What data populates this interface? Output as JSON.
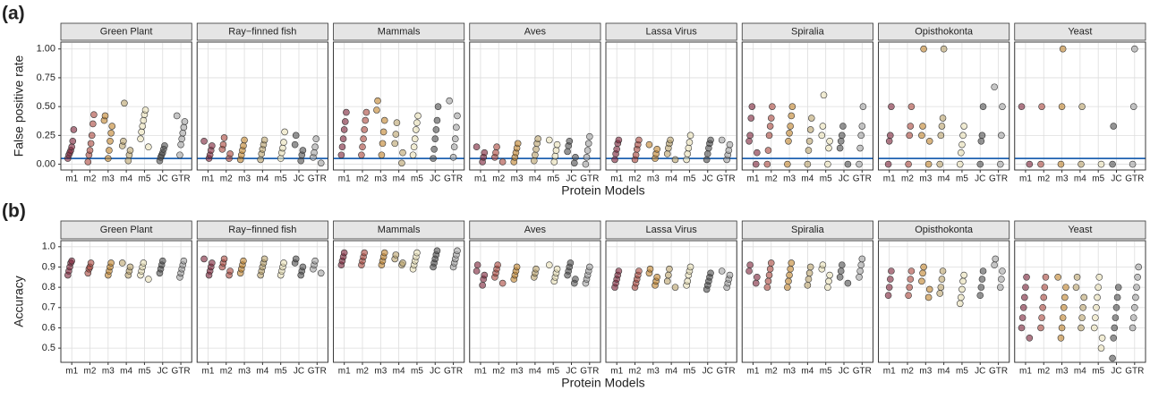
{
  "chart_data": [
    {
      "type": "strip",
      "label": "(a)",
      "y_label": "False positive rate",
      "x_label": "Protein Models",
      "categories": [
        "m1",
        "m2",
        "m3",
        "m4",
        "m5",
        "JC",
        "GTR"
      ],
      "colors": [
        "#7a2035",
        "#a8453a",
        "#c0822a",
        "#b9a26a",
        "#e8dfb5",
        "#4d4d4d",
        "#a0a0a0"
      ],
      "ylim": [
        -0.05,
        1.06
      ],
      "yticks": [
        {
          "value": 0,
          "label": "0.00"
        },
        0.25,
        {
          "value": 0.5,
          "label": "0.50"
        },
        0.75,
        {
          "value": 1,
          "label": "1.00"
        }
      ],
      "hline": 0.05,
      "hline_color": "#1f62b0",
      "grid": true,
      "facets": [
        {
          "name": "Green Plant",
          "values": [
            [
              0.05,
              0.08,
              0.1,
              0.12,
              0.15,
              0.2,
              0.3
            ],
            [
              0.02,
              0.08,
              0.12,
              0.18,
              0.25,
              0.35,
              0.43
            ],
            [
              0.05,
              0.12,
              0.2,
              0.27,
              0.33,
              0.38,
              0.42
            ],
            [
              0.03,
              0.08,
              0.12,
              0.16,
              0.2,
              0.53
            ],
            [
              0.15,
              0.22,
              0.28,
              0.33,
              0.38,
              0.43,
              0.47
            ],
            [
              0.03,
              0.06,
              0.08,
              0.1,
              0.13,
              0.16
            ],
            [
              0.08,
              0.17,
              0.22,
              0.27,
              0.32,
              0.37,
              0.42
            ]
          ]
        },
        {
          "name": "Ray−finned fish",
          "values": [
            [
              0.05,
              0.08,
              0.12,
              0.16,
              0.2
            ],
            [
              0.05,
              0.09,
              0.13,
              0.17,
              0.23
            ],
            [
              0.04,
              0.08,
              0.12,
              0.16,
              0.21
            ],
            [
              0.04,
              0.09,
              0.13,
              0.17,
              0.21
            ],
            [
              0.05,
              0.1,
              0.14,
              0.19,
              0.28
            ],
            [
              0.03,
              0.08,
              0.12,
              0.17,
              0.25
            ],
            [
              0.01,
              0.06,
              0.1,
              0.15,
              0.22
            ]
          ]
        },
        {
          "name": "Mammals",
          "values": [
            [
              0.08,
              0.15,
              0.22,
              0.3,
              0.37,
              0.45
            ],
            [
              0.08,
              0.15,
              0.22,
              0.3,
              0.38,
              0.45
            ],
            [
              0.08,
              0.18,
              0.28,
              0.38,
              0.47,
              0.55
            ],
            [
              0.01,
              0.1,
              0.18,
              0.26,
              0.36
            ],
            [
              0.08,
              0.15,
              0.22,
              0.3,
              0.36,
              0.42
            ],
            [
              0.05,
              0.13,
              0.22,
              0.3,
              0.38,
              0.5
            ],
            [
              0.06,
              0.15,
              0.22,
              0.32,
              0.42,
              0.55
            ]
          ]
        },
        {
          "name": "Aves",
          "values": [
            [
              0.02,
              0.06,
              0.1,
              0.15
            ],
            [
              0.02,
              0.06,
              0.1,
              0.15
            ],
            [
              0.02,
              0.06,
              0.1,
              0.14,
              0.18
            ],
            [
              0.03,
              0.08,
              0.13,
              0.18,
              0.22
            ],
            [
              0.02,
              0.07,
              0.12,
              0.17,
              0.21
            ],
            [
              0.01,
              0.06,
              0.11,
              0.16,
              0.2
            ],
            [
              0,
              0.06,
              0.12,
              0.18,
              0.24
            ]
          ]
        },
        {
          "name": "Lassa Virus",
          "values": [
            [
              0.04,
              0.09,
              0.13,
              0.18,
              0.21
            ],
            [
              0.04,
              0.08,
              0.13,
              0.17,
              0.21
            ],
            [
              0.05,
              0.09,
              0.13,
              0.17
            ],
            [
              0.04,
              0.09,
              0.14,
              0.18,
              0.21
            ],
            [
              0.04,
              0.09,
              0.14,
              0.19,
              0.25
            ],
            [
              0.04,
              0.09,
              0.14,
              0.18,
              0.21
            ],
            [
              0.04,
              0.08,
              0.12,
              0.17,
              0.21
            ]
          ]
        },
        {
          "name": "Spiralia",
          "values": [
            [
              0,
              0.1,
              0.2,
              0.25,
              0.4,
              0.5
            ],
            [
              0,
              0.12,
              0.25,
              0.33,
              0.4,
              0.5
            ],
            [
              0,
              0.2,
              0.27,
              0.33,
              0.42,
              0.5
            ],
            [
              0,
              0.12,
              0.2,
              0.3,
              0.4
            ],
            [
              0,
              0.14,
              0.2,
              0.25,
              0.33,
              0.6
            ],
            [
              0,
              0.14,
              0.2,
              0.25,
              0.33
            ],
            [
              0,
              0.14,
              0.25,
              0.33,
              0.5
            ]
          ]
        },
        {
          "name": "Opisthokonta",
          "values": [
            [
              0,
              0.2,
              0.25,
              0.5
            ],
            [
              0,
              0.25,
              0.33,
              0.5
            ],
            [
              0,
              0.2,
              0.25,
              0.33,
              1
            ],
            [
              0,
              0.25,
              0.33,
              0.4,
              1
            ],
            [
              0,
              0.1,
              0.17,
              0.25,
              0.33
            ],
            [
              0,
              0.2,
              0.25,
              0.5
            ],
            [
              0,
              0.25,
              0.5,
              0.67
            ]
          ]
        },
        {
          "name": "Yeast",
          "values": [
            [
              0,
              0.5
            ],
            [
              0,
              0.5
            ],
            [
              0,
              0.5,
              1
            ],
            [
              0,
              0.5
            ],
            [
              0
            ],
            [
              0,
              0.33
            ],
            [
              0,
              0.5,
              1
            ]
          ]
        }
      ]
    },
    {
      "type": "strip",
      "label": "(b)",
      "y_label": "Accuracy",
      "x_label": "Protein Models",
      "categories": [
        "m1",
        "m2",
        "m3",
        "m4",
        "m5",
        "JC",
        "GTR"
      ],
      "colors": [
        "#7a2035",
        "#a8453a",
        "#c0822a",
        "#b9a26a",
        "#e8dfb5",
        "#4d4d4d",
        "#a0a0a0"
      ],
      "ylim": [
        0.43,
        1.03
      ],
      "yticks": [
        0.5,
        0.6,
        0.7,
        0.8,
        0.9,
        {
          "value": 1,
          "label": "1.0"
        }
      ],
      "grid": true,
      "facets": [
        {
          "name": "Green Plant",
          "values": [
            [
              0.86,
              0.88,
              0.9,
              0.92,
              0.93
            ],
            [
              0.87,
              0.89,
              0.9,
              0.92
            ],
            [
              0.86,
              0.88,
              0.9,
              0.92
            ],
            [
              0.86,
              0.88,
              0.9,
              0.92
            ],
            [
              0.84,
              0.86,
              0.88,
              0.9,
              0.92
            ],
            [
              0.87,
              0.89,
              0.91,
              0.93
            ],
            [
              0.85,
              0.87,
              0.89,
              0.91,
              0.93
            ]
          ]
        },
        {
          "name": "Ray−finned fish",
          "values": [
            [
              0.86,
              0.88,
              0.9,
              0.92,
              0.94
            ],
            [
              0.86,
              0.88,
              0.9,
              0.92,
              0.94
            ],
            [
              0.87,
              0.89,
              0.91,
              0.93
            ],
            [
              0.86,
              0.88,
              0.9,
              0.92,
              0.94
            ],
            [
              0.86,
              0.88,
              0.9,
              0.92
            ],
            [
              0.86,
              0.88,
              0.9,
              0.92,
              0.94
            ],
            [
              0.87,
              0.89,
              0.91,
              0.93
            ]
          ]
        },
        {
          "name": "Mammals",
          "values": [
            [
              0.91,
              0.93,
              0.95,
              0.97
            ],
            [
              0.91,
              0.93,
              0.95,
              0.97
            ],
            [
              0.91,
              0.93,
              0.95,
              0.97
            ],
            [
              0.91,
              0.92,
              0.94,
              0.96
            ],
            [
              0.89,
              0.91,
              0.93,
              0.95,
              0.97
            ],
            [
              0.9,
              0.92,
              0.94,
              0.96,
              0.98
            ],
            [
              0.9,
              0.92,
              0.94,
              0.96,
              0.98
            ]
          ]
        },
        {
          "name": "Aves",
          "values": [
            [
              0.81,
              0.84,
              0.86,
              0.88,
              0.91
            ],
            [
              0.82,
              0.85,
              0.87,
              0.89,
              0.91
            ],
            [
              0.84,
              0.86,
              0.88,
              0.9
            ],
            [
              0.85,
              0.87,
              0.89
            ],
            [
              0.83,
              0.85,
              0.87,
              0.89,
              0.91
            ],
            [
              0.82,
              0.84,
              0.86,
              0.88,
              0.9,
              0.92
            ],
            [
              0.82,
              0.84,
              0.86,
              0.88,
              0.9
            ]
          ]
        },
        {
          "name": "Lassa Virus",
          "values": [
            [
              0.8,
              0.82,
              0.84,
              0.86,
              0.88
            ],
            [
              0.8,
              0.82,
              0.84,
              0.86,
              0.88
            ],
            [
              0.81,
              0.83,
              0.85,
              0.87,
              0.89
            ],
            [
              0.8,
              0.83,
              0.86,
              0.89
            ],
            [
              0.81,
              0.83,
              0.86,
              0.88,
              0.9
            ],
            [
              0.79,
              0.81,
              0.83,
              0.85,
              0.87
            ],
            [
              0.8,
              0.82,
              0.84,
              0.86,
              0.88
            ]
          ]
        },
        {
          "name": "Spiralia",
          "values": [
            [
              0.82,
              0.85,
              0.88,
              0.91
            ],
            [
              0.8,
              0.83,
              0.86,
              0.89,
              0.92
            ],
            [
              0.8,
              0.83,
              0.86,
              0.89,
              0.92
            ],
            [
              0.81,
              0.84,
              0.87,
              0.9
            ],
            [
              0.8,
              0.83,
              0.86,
              0.89,
              0.91
            ],
            [
              0.82,
              0.85,
              0.88,
              0.91
            ],
            [
              0.85,
              0.88,
              0.91,
              0.94
            ]
          ]
        },
        {
          "name": "Opisthokonta",
          "values": [
            [
              0.76,
              0.8,
              0.84,
              0.88
            ],
            [
              0.76,
              0.8,
              0.84,
              0.88
            ],
            [
              0.75,
              0.79,
              0.83,
              0.87,
              0.9
            ],
            [
              0.77,
              0.8,
              0.84,
              0.88
            ],
            [
              0.72,
              0.75,
              0.79,
              0.83,
              0.86
            ],
            [
              0.76,
              0.8,
              0.84,
              0.88
            ],
            [
              0.8,
              0.84,
              0.88,
              0.91,
              0.94
            ]
          ]
        },
        {
          "name": "Yeast",
          "values": [
            [
              0.55,
              0.6,
              0.65,
              0.7,
              0.75,
              0.8,
              0.85
            ],
            [
              0.6,
              0.65,
              0.7,
              0.75,
              0.8,
              0.85
            ],
            [
              0.55,
              0.6,
              0.65,
              0.7,
              0.75,
              0.8,
              0.85
            ],
            [
              0.6,
              0.65,
              0.7,
              0.75,
              0.8,
              0.85
            ],
            [
              0.5,
              0.55,
              0.6,
              0.65,
              0.7,
              0.75,
              0.8,
              0.85
            ],
            [
              0.45,
              0.55,
              0.6,
              0.65,
              0.7,
              0.75,
              0.8
            ],
            [
              0.6,
              0.65,
              0.7,
              0.75,
              0.8,
              0.85,
              0.9
            ]
          ]
        }
      ]
    }
  ]
}
